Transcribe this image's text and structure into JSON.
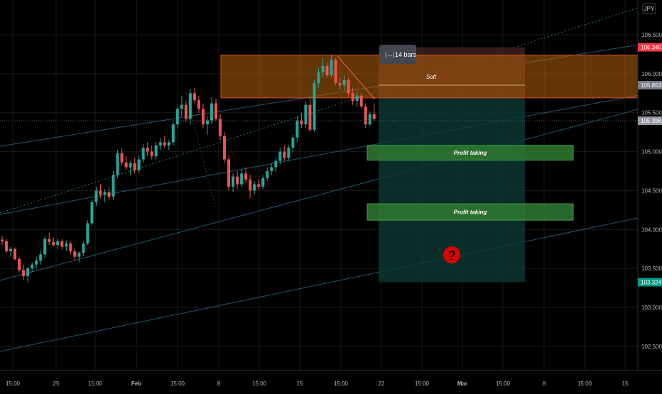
{
  "chart_data": {
    "type": "candlestick",
    "currency": "JPY",
    "y_ticks": [
      {
        "label": "106.500",
        "value": 106.5
      },
      {
        "label": "106.000",
        "value": 106.0
      },
      {
        "label": "105.500",
        "value": 105.5
      },
      {
        "label": "105.000",
        "value": 105.0
      },
      {
        "label": "104.500",
        "value": 104.5
      },
      {
        "label": "104.000",
        "value": 104.0
      },
      {
        "label": "103.500",
        "value": 103.5
      },
      {
        "label": "103.000",
        "value": 103.0
      },
      {
        "label": "102.500",
        "value": 102.5
      }
    ],
    "ylim": [
      102.1,
      107.1
    ],
    "x_ticks": [
      "15:00",
      "25",
      "15:00",
      "Feb",
      "15:00",
      "8",
      "15:00",
      "15",
      "15:00",
      "22",
      "15:00",
      "Mar",
      "15:00",
      "8",
      "15:00",
      "15"
    ],
    "x_tick_bold": [
      false,
      false,
      false,
      true,
      false,
      false,
      false,
      false,
      false,
      false,
      false,
      true,
      false,
      false,
      false,
      false
    ],
    "price_labels": [
      {
        "label": "106.340",
        "value": 106.34,
        "color": "#F23645"
      },
      {
        "label": "105.853",
        "value": 105.853,
        "color": "#787B86"
      },
      {
        "label": "105.396",
        "value": 105.396,
        "color": "#9598A1"
      },
      {
        "label": "103.324",
        "value": 103.324,
        "color": "#089981"
      }
    ],
    "candles": [
      [
        103.87,
        103.92,
        103.8,
        103.85
      ],
      [
        103.85,
        103.88,
        103.7,
        103.72
      ],
      [
        103.72,
        103.78,
        103.65,
        103.75
      ],
      [
        103.75,
        103.77,
        103.6,
        103.62
      ],
      [
        103.62,
        103.65,
        103.45,
        103.48
      ],
      [
        103.48,
        103.55,
        103.35,
        103.4
      ],
      [
        103.4,
        103.52,
        103.32,
        103.5
      ],
      [
        103.5,
        103.58,
        103.45,
        103.55
      ],
      [
        103.55,
        103.65,
        103.5,
        103.6
      ],
      [
        103.6,
        103.72,
        103.55,
        103.68
      ],
      [
        103.68,
        103.92,
        103.64,
        103.88
      ],
      [
        103.88,
        103.96,
        103.8,
        103.84
      ],
      [
        103.84,
        103.9,
        103.78,
        103.8
      ],
      [
        103.8,
        103.88,
        103.75,
        103.85
      ],
      [
        103.85,
        103.88,
        103.74,
        103.78
      ],
      [
        103.78,
        103.86,
        103.72,
        103.82
      ],
      [
        103.82,
        103.85,
        103.68,
        103.72
      ],
      [
        103.72,
        103.76,
        103.6,
        103.65
      ],
      [
        103.65,
        103.72,
        103.58,
        103.7
      ],
      [
        103.7,
        103.85,
        103.66,
        103.82
      ],
      [
        103.82,
        104.12,
        103.8,
        104.08
      ],
      [
        104.08,
        104.38,
        104.05,
        104.35
      ],
      [
        104.35,
        104.55,
        104.3,
        104.5
      ],
      [
        104.5,
        104.58,
        104.4,
        104.45
      ],
      [
        104.45,
        104.52,
        104.35,
        104.48
      ],
      [
        104.48,
        104.55,
        104.38,
        104.42
      ],
      [
        104.42,
        104.75,
        104.38,
        104.7
      ],
      [
        104.7,
        105.02,
        104.66,
        104.98
      ],
      [
        104.98,
        105.05,
        104.82,
        104.86
      ],
      [
        104.86,
        104.94,
        104.76,
        104.8
      ],
      [
        104.8,
        104.88,
        104.7,
        104.85
      ],
      [
        104.85,
        104.92,
        104.72,
        104.76
      ],
      [
        104.76,
        104.95,
        104.72,
        104.9
      ],
      [
        104.9,
        105.1,
        104.86,
        105.05
      ],
      [
        105.05,
        105.12,
        104.95,
        105.0
      ],
      [
        105.0,
        105.08,
        104.9,
        104.94
      ],
      [
        104.94,
        105.12,
        104.9,
        105.08
      ],
      [
        105.08,
        105.18,
        105.02,
        105.12
      ],
      [
        105.12,
        105.2,
        105.05,
        105.08
      ],
      [
        105.08,
        105.15,
        105.02,
        105.12
      ],
      [
        105.12,
        105.4,
        105.08,
        105.35
      ],
      [
        105.35,
        105.58,
        105.3,
        105.55
      ],
      [
        105.55,
        105.72,
        105.45,
        105.6
      ],
      [
        105.6,
        105.65,
        105.38,
        105.42
      ],
      [
        105.42,
        105.8,
        105.35,
        105.75
      ],
      [
        105.75,
        105.82,
        105.62,
        105.66
      ],
      [
        105.66,
        105.72,
        105.5,
        105.55
      ],
      [
        105.55,
        105.62,
        105.3,
        105.35
      ],
      [
        105.35,
        105.45,
        105.22,
        105.4
      ],
      [
        105.4,
        105.7,
        105.35,
        105.62
      ],
      [
        105.62,
        105.68,
        105.4,
        105.42
      ],
      [
        105.42,
        105.48,
        105.15,
        105.2
      ],
      [
        105.2,
        105.25,
        104.85,
        104.9
      ],
      [
        104.9,
        104.95,
        104.5,
        104.55
      ],
      [
        104.55,
        104.72,
        104.48,
        104.68
      ],
      [
        104.68,
        104.75,
        104.52,
        104.58
      ],
      [
        104.58,
        104.78,
        104.55,
        104.72
      ],
      [
        104.72,
        104.8,
        104.6,
        104.64
      ],
      [
        104.64,
        104.7,
        104.4,
        104.5
      ],
      [
        104.5,
        104.62,
        104.45,
        104.58
      ],
      [
        104.58,
        104.65,
        104.5,
        104.55
      ],
      [
        104.55,
        104.7,
        104.52,
        104.66
      ],
      [
        104.66,
        104.8,
        104.62,
        104.75
      ],
      [
        104.75,
        104.85,
        104.7,
        104.8
      ],
      [
        104.8,
        104.92,
        104.74,
        104.88
      ],
      [
        104.88,
        105.05,
        104.84,
        105.0
      ],
      [
        105.0,
        105.08,
        104.88,
        104.92
      ],
      [
        104.92,
        105.08,
        104.88,
        105.05
      ],
      [
        105.05,
        105.22,
        105.0,
        105.18
      ],
      [
        105.18,
        105.45,
        105.12,
        105.4
      ],
      [
        105.4,
        105.5,
        105.3,
        105.35
      ],
      [
        105.35,
        105.65,
        105.3,
        105.6
      ],
      [
        105.6,
        105.7,
        105.25,
        105.28
      ],
      [
        105.28,
        105.92,
        105.25,
        105.88
      ],
      [
        105.88,
        106.08,
        105.82,
        106.02
      ],
      [
        106.02,
        106.2,
        105.95,
        106.1
      ],
      [
        106.1,
        106.15,
        105.95,
        105.98
      ],
      [
        105.98,
        106.25,
        105.95,
        106.18
      ],
      [
        106.18,
        106.2,
        105.85,
        105.88
      ],
      [
        105.88,
        105.95,
        105.8,
        105.85
      ],
      [
        105.85,
        105.98,
        105.78,
        105.92
      ],
      [
        105.92,
        105.95,
        105.7,
        105.75
      ],
      [
        105.75,
        105.82,
        105.6,
        105.65
      ],
      [
        105.65,
        105.78,
        105.58,
        105.72
      ],
      [
        105.72,
        105.75,
        105.55,
        105.58
      ],
      [
        105.58,
        105.62,
        105.3,
        105.35
      ],
      [
        105.35,
        105.52,
        105.32,
        105.48
      ],
      [
        105.48,
        105.62,
        105.4,
        105.42
      ]
    ],
    "candle_x_start": 3,
    "candle_x_step": 6.02,
    "drawings": {
      "resistance_zone": {
        "from": 106.24,
        "to": 105.69
      },
      "short_position": {
        "entry": 105.7,
        "stop": 106.34,
        "target": 103.324
      },
      "soft_level": {
        "label": "Soft",
        "value": 105.853
      },
      "profit_zones": [
        {
          "label": "Profit taking",
          "top": 105.08,
          "bottom": 104.89
        },
        {
          "label": "Profit taking",
          "top": 104.33,
          "bottom": 104.12
        }
      ],
      "bars_badge": "14 bars",
      "question_mark": "?"
    },
    "colors": {
      "up": "#26A69A",
      "down": "#EF5350",
      "background": "#000000",
      "grid": "#1A1A1A",
      "channel": "#1E5A73",
      "zone": "#B8620A",
      "zone_border": "#D94A2E",
      "profit": "#2F7A2F",
      "target_area": "#0B3A33",
      "stop_area": "#3D1F1F"
    }
  }
}
